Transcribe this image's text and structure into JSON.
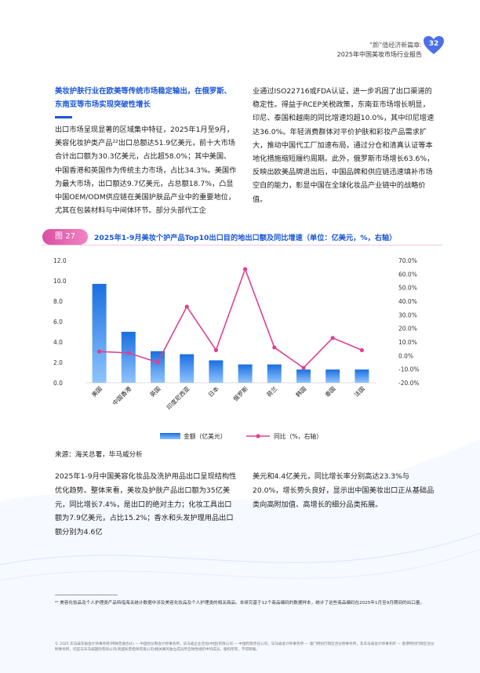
{
  "header": {
    "line1": "“颜”值经济新篇章:",
    "line2": "2025年中国美妆市场行业报告",
    "page_number": "32"
  },
  "section": {
    "heading": "美妆护肤行业在欧美等传统市场稳定输出，在俄罗斯、东南亚等市场实现突破性增长"
  },
  "paragraph1": {
    "left": "出口市场呈现显著的区域集中特征，2025年1月至9月，美容化妆护类产品²²出口总额达51.9亿美元，前十大市场合计出口额为30.3亿美元，占比超58.0%；其中美国、中国香港和英国作为传统主力市场，占比34.3%。美国作为最大市场，出口额达9.7亿美元，占总额18.7%，凸显中国OEM/ODM供应链在美国护肤品产业中的重要地位，尤其在包装材料与中间体环节。部分头部代工企",
    "right": "业通过ISO22716或FDA认证，进一步巩固了出口渠道的稳定性。得益于RCEP关税政策，东南亚市场增长明显，印尼、泰国和越南的同比增速均超10.0%，其中印尼增速达36.0%。年轻消费群体对平价护肤和彩妆产品需求扩大，推动中国代工厂加速布局，通过分仓和清真认证等本地化措施缩短履约周期。此外，俄罗斯市场增长63.6%，反映出欧美品牌退出后，中国品牌和供应链迅速填补市场空白的能力，彰显中国在全球化妆品产业链中的战略价值。"
  },
  "figure": {
    "number": "图 27",
    "title": "2025年1-9月美妆个护产品Top10出口目的地出口额及同比增速（单位：亿美元，%，右轴）",
    "source": "来源：海关总署，毕马威分析"
  },
  "chart_data": {
    "type": "bar",
    "categories": [
      "美国",
      "中国香港",
      "英国",
      "印度尼西亚",
      "日本",
      "俄罗斯",
      "荷兰",
      "韩国",
      "泰国",
      "法国"
    ],
    "series": [
      {
        "name": "金额（亿美元）",
        "type": "bar",
        "axis": "left",
        "values": [
          9.7,
          5.0,
          3.1,
          2.8,
          2.2,
          1.8,
          1.8,
          1.3,
          1.3,
          1.3
        ]
      },
      {
        "name": "同比（%，右轴）",
        "type": "line",
        "axis": "right",
        "values": [
          3.0,
          2.0,
          -5.0,
          36.0,
          4.0,
          63.6,
          6.0,
          -9.0,
          13.0,
          4.0
        ]
      }
    ],
    "left_axis": {
      "min": 0,
      "max": 12,
      "ticks": [
        "0.0",
        "2.0",
        "4.0",
        "6.0",
        "8.0",
        "10.0",
        "12.0"
      ]
    },
    "right_axis": {
      "min": -20,
      "max": 70,
      "ticks": [
        "-20.0%",
        "-10.0%",
        "0.0%",
        "10.0%",
        "20.0%",
        "30.0%",
        "40.0%",
        "50.0%",
        "60.0%",
        "70.0%"
      ]
    },
    "legend_position": "bottom",
    "grid": false,
    "colors": {
      "bar": "#1a6fe0",
      "line": "#e0408f"
    }
  },
  "paragraph2": {
    "left": "2025年1-9月中国美容化妆品及洗护用品出口呈现结构性优化趋势。整体来看，美妆及护肤产品出口额为35亿美元，同比增长7.4%，是出口的绝对主力；化妆工具出口额为7.9亿美元，占比15.2%；香水和头发护理用品出口额分别为4.6亿",
    "right": "美元和4.4亿美元，同比增长率分别高达23.3%与20.0%，增长势头良好，显示出中国美妆出口正从基础品类向高附加值、高增长的细分品类拓展。"
  },
  "footnote": "²² 美容化妆品及个人护理类产品特指海关统计数据中涉及美容化妆品及个人护理类的相关商品。本研究基于12个商品编码的数据样本，统计了这些商品编码在2025年1月至9月期间的出口量。",
  "legal": "© 2025 毕马威华振会计师事务所(特殊普通合伙) — 中国合伙制会计师事务所，毕马威企业咨询(中国)有限公司 — 中国有限责任公司，毕马威会计师事务所 — 澳门特别行政区合伙制事务所，及毕马威会计师事务所 — 香港特别行政区合伙制事务所，均是与毕马威国际有限公司(英国私营担保有限公司)相关联的独立成员所全球性组织中的成员。版权所有，不得转载。"
}
